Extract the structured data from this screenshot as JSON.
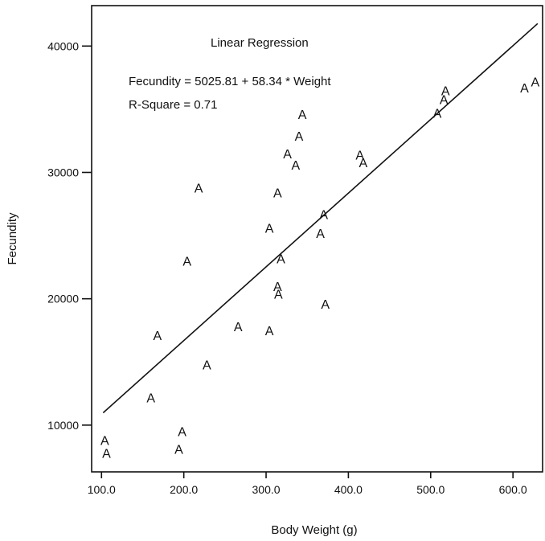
{
  "chart_data": {
    "type": "scatter",
    "title": "",
    "xlabel": "Body Weight (g)",
    "ylabel": "Fecundity",
    "xlim": [
      88,
      636
    ],
    "ylim": [
      6300,
      43200
    ],
    "x_ticks": [
      100,
      200,
      300,
      400,
      500,
      600
    ],
    "x_tick_labels": [
      "100.0",
      "200.0",
      "300.0",
      "400.0",
      "500.0",
      "600.0"
    ],
    "y_ticks": [
      10000,
      20000,
      30000,
      40000
    ],
    "y_tick_labels": [
      "10000",
      "20000",
      "30000",
      "40000"
    ],
    "grid": false,
    "marker": "A",
    "points": [
      {
        "x": 104,
        "y": 8800
      },
      {
        "x": 106,
        "y": 7800
      },
      {
        "x": 160,
        "y": 12200
      },
      {
        "x": 168,
        "y": 17100
      },
      {
        "x": 194,
        "y": 8100
      },
      {
        "x": 198,
        "y": 9500
      },
      {
        "x": 204,
        "y": 23000
      },
      {
        "x": 218,
        "y": 28800
      },
      {
        "x": 228,
        "y": 14800
      },
      {
        "x": 266,
        "y": 17800
      },
      {
        "x": 304,
        "y": 17500
      },
      {
        "x": 304,
        "y": 25600
      },
      {
        "x": 314,
        "y": 28400
      },
      {
        "x": 314,
        "y": 21000
      },
      {
        "x": 315,
        "y": 20400
      },
      {
        "x": 318,
        "y": 23200
      },
      {
        "x": 326,
        "y": 31500
      },
      {
        "x": 336,
        "y": 30600
      },
      {
        "x": 340,
        "y": 32900
      },
      {
        "x": 344,
        "y": 34600
      },
      {
        "x": 366,
        "y": 25200
      },
      {
        "x": 370,
        "y": 26700
      },
      {
        "x": 372,
        "y": 19600
      },
      {
        "x": 414,
        "y": 31400
      },
      {
        "x": 418,
        "y": 30800
      },
      {
        "x": 508,
        "y": 34700
      },
      {
        "x": 516,
        "y": 35800
      },
      {
        "x": 518,
        "y": 36500
      },
      {
        "x": 614,
        "y": 36700
      },
      {
        "x": 627,
        "y": 37200
      }
    ],
    "regression": {
      "intercept": 5025.81,
      "slope": 58.34,
      "x_range": [
        102,
        630
      ]
    },
    "annotations": {
      "heading": "Linear Regression",
      "equation": "Fecundity = 5025.81 + 58.34 * Weight",
      "r_square": "R-Square = 0.71"
    }
  }
}
